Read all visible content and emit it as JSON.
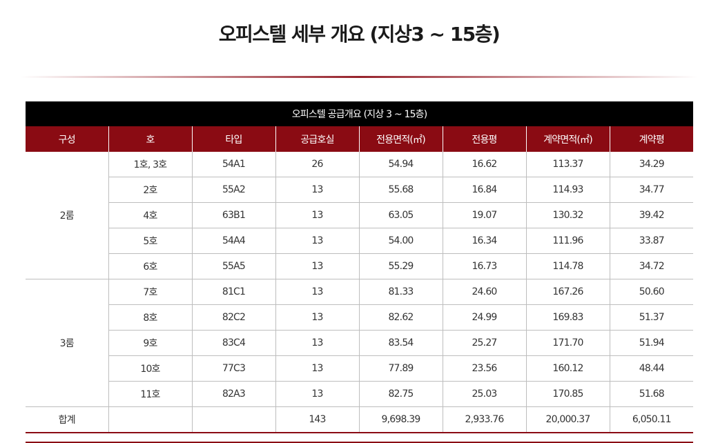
{
  "page": {
    "title": "오피스텔 세부 개요 (지상3 ~ 15층)"
  },
  "table": {
    "caption": "오피스텔 공급개요 (지상 3 ~ 15층)",
    "headers": [
      "구성",
      "호",
      "타입",
      "공급호실",
      "전용면적(㎡)",
      "전용평",
      "계약면적(㎡)",
      "계약평"
    ],
    "groups": [
      {
        "label": "2룸",
        "rows": [
          [
            "1호, 3호",
            "54A1",
            "26",
            "54.94",
            "16.62",
            "113.37",
            "34.29"
          ],
          [
            "2호",
            "55A2",
            "13",
            "55.68",
            "16.84",
            "114.93",
            "34.77"
          ],
          [
            "4호",
            "63B1",
            "13",
            "63.05",
            "19.07",
            "130.32",
            "39.42"
          ],
          [
            "5호",
            "54A4",
            "13",
            "54.00",
            "16.34",
            "111.96",
            "33.87"
          ],
          [
            "6호",
            "55A5",
            "13",
            "55.29",
            "16.73",
            "114.78",
            "34.72"
          ]
        ]
      },
      {
        "label": "3룸",
        "rows": [
          [
            "7호",
            "81C1",
            "13",
            "81.33",
            "24.60",
            "167.26",
            "50.60"
          ],
          [
            "8호",
            "82C2",
            "13",
            "82.62",
            "24.99",
            "169.83",
            "51.37"
          ],
          [
            "9호",
            "83C4",
            "13",
            "83.54",
            "25.27",
            "171.70",
            "51.94"
          ],
          [
            "10호",
            "77C3",
            "13",
            "77.89",
            "23.56",
            "160.12",
            "48.44"
          ],
          [
            "11호",
            "82A3",
            "13",
            "82.75",
            "25.03",
            "170.85",
            "51.68"
          ]
        ]
      }
    ],
    "total": [
      "합계",
      "",
      "",
      "143",
      "9,698.39",
      "2,933.76",
      "20,000.37",
      "6,050.11"
    ]
  },
  "colors": {
    "header_bg": "#8a0b13",
    "caption_bg": "#000000",
    "grid": "#bdbdbd"
  }
}
